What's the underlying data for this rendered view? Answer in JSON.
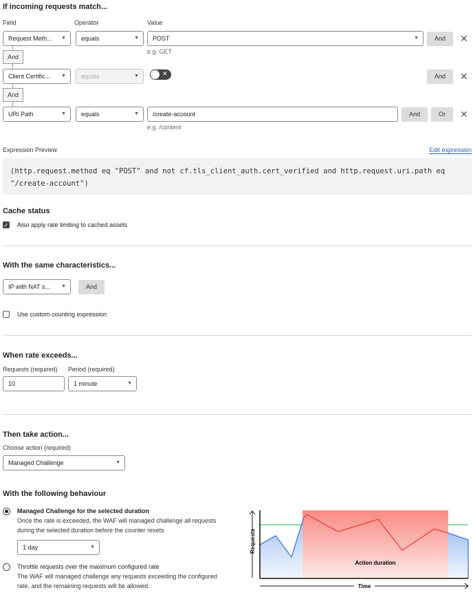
{
  "match": {
    "title": "If incoming requests match...",
    "field_label": "Field",
    "operator_label": "Operator",
    "value_label": "Value",
    "rows": [
      {
        "field": "Request Meth...",
        "operator": "equals",
        "value": "POST",
        "hint": "e.g. GET"
      },
      {
        "field": "Client Certific...",
        "operator": "equals",
        "toggle": "off"
      },
      {
        "field": "URI Path",
        "operator": "equals",
        "value": "/create-account",
        "hint": "e.g. /content"
      }
    ],
    "and": "And",
    "or": "Or",
    "close": "✕"
  },
  "expression": {
    "label": "Expression Preview",
    "edit": "Edit expression",
    "line1": "(http.request.method eq \"POST\" and not cf.tls_client_auth.cert_verified and http.request.uri.path eq",
    "line2": "\"/create-account\")"
  },
  "cache": {
    "title": "Cache status",
    "checkbox": "Also apply rate limiting to cached assets",
    "checked": true
  },
  "characteristics": {
    "title": "With the same characteristics...",
    "select": "IP with NAT s...",
    "and": "And",
    "custom": "Use custom counting expression",
    "custom_checked": false
  },
  "rate": {
    "title": "When rate exceeds...",
    "requests_label": "Requests (required)",
    "requests": "10",
    "period_label": "Period (required)",
    "period": "1 minute"
  },
  "action": {
    "title": "Then take action...",
    "choose_label": "Choose action (required)",
    "selected": "Managed Challenge"
  },
  "behaviour": {
    "title": "With the following behaviour",
    "opt1_title": "Managed Challenge for the selected duration",
    "opt1_line1": "Once the rate is exceeded, the WAF will managed challenge all requests",
    "opt1_line2": "during the selected duration before the counter resets.",
    "duration": "1 day",
    "opt2_title": "Throttle requests over the maximum configured rate",
    "opt2_line1": "The WAF will managed challenge any requests exceeding the configured",
    "opt2_line2": "rate, and the remaining requests will be allowed."
  },
  "diagram": {
    "y_label": "Requests",
    "x_label": "Time",
    "region_label": "Action duration",
    "colors": {
      "threshold": "#4cc46a",
      "normal": "#3f74e0",
      "exceeded": "#e8413a",
      "region": "#f98b84"
    }
  }
}
